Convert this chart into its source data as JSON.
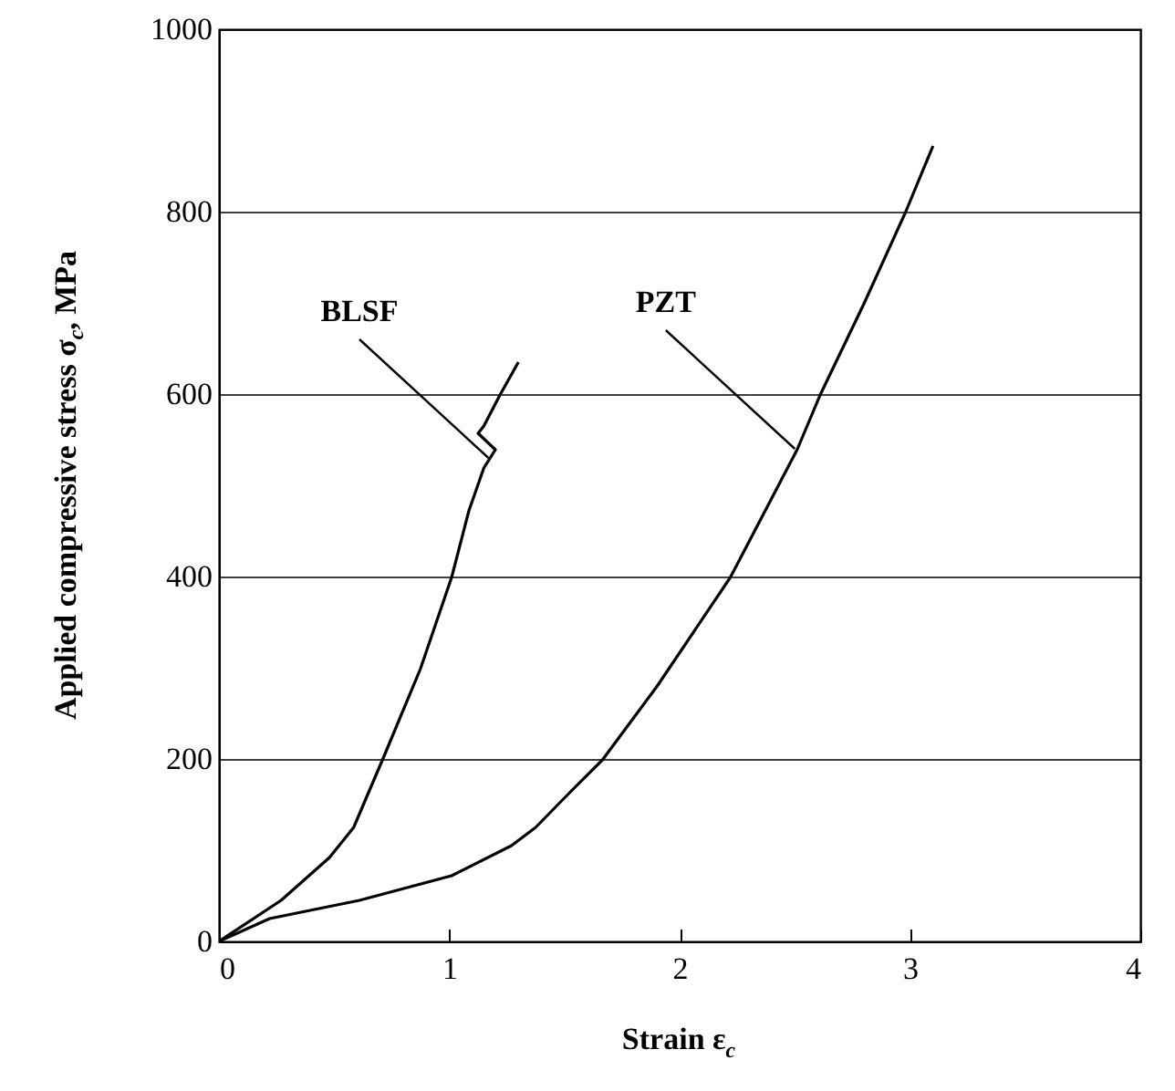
{
  "chart_data": {
    "type": "line",
    "xlabel": "Strain ε$_{c}$",
    "ylabel": "Applied compressive stress σ$_{c}$, MPa",
    "xlim": [
      0,
      4
    ],
    "ylim": [
      0,
      1000
    ],
    "xticks": [
      0,
      1,
      2,
      3,
      4
    ],
    "yticks": [
      0,
      200,
      400,
      600,
      800,
      1000
    ],
    "grid": "y",
    "line_style": "solid",
    "series": [
      {
        "color": "#000000",
        "x": [
          0,
          0.27,
          0.48,
          0.585,
          0.72,
          0.875,
          1.01,
          1.085,
          1.15,
          1.2,
          1.125,
          1.15,
          1.22,
          1.3
        ],
        "values": [
          0,
          45,
          92,
          125,
          205,
          299,
          399,
          472,
          519,
          539,
          557,
          565,
          599,
          635
        ]
      },
      {
        "color": "#000000",
        "x": [
          0,
          0.22,
          0.61,
          1.01,
          1.27,
          1.375,
          1.53,
          1.665,
          1.9,
          2.22,
          2.51,
          2.61,
          2.8,
          2.98,
          3.1
        ],
        "values": [
          0,
          25,
          45,
          72,
          105,
          125,
          165,
          199,
          279,
          399,
          539,
          599,
          699,
          799,
          872
        ]
      }
    ],
    "annotations": [
      {
        "text": "BLSF",
        "x": 1.17,
        "y": 530
      },
      {
        "text": "PZT",
        "x": 2.5,
        "y": 540
      }
    ]
  }
}
